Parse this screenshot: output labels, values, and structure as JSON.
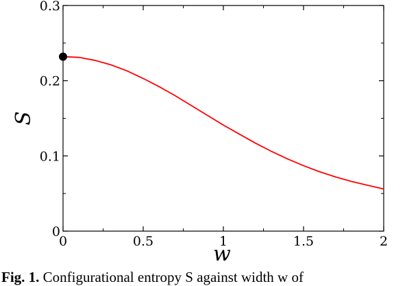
{
  "chart_data": {
    "type": "line",
    "title": "",
    "xlabel": "w",
    "ylabel": "S",
    "xlim": [
      0,
      2
    ],
    "ylim": [
      0,
      0.3
    ],
    "x_ticks": [
      "0",
      "0.5",
      "1",
      "1.5",
      "2"
    ],
    "x_tick_values": [
      0,
      0.5,
      1,
      1.5,
      2
    ],
    "y_ticks": [
      "0",
      "0.1",
      "0.2",
      "0.3"
    ],
    "y_tick_values": [
      0,
      0.1,
      0.2,
      0.3
    ],
    "grid": false,
    "series": [
      {
        "color": "#ff0000",
        "x": [
          0,
          0.1,
          0.2,
          0.3,
          0.4,
          0.5,
          0.6,
          0.7,
          0.8,
          0.9,
          1.0,
          1.1,
          1.2,
          1.3,
          1.4,
          1.5,
          1.6,
          1.7,
          1.8,
          1.9,
          2.0
        ],
        "y": [
          0.232,
          0.231,
          0.227,
          0.221,
          0.213,
          0.203,
          0.192,
          0.18,
          0.167,
          0.154,
          0.141,
          0.129,
          0.117,
          0.106,
          0.096,
          0.087,
          0.079,
          0.072,
          0.066,
          0.061,
          0.056
        ]
      }
    ],
    "marker": {
      "x": 0,
      "y": 0.232,
      "color": "#000000"
    }
  },
  "caption": {
    "label": "Fig. 1.",
    "text": " Configurational entropy S against width w of"
  }
}
